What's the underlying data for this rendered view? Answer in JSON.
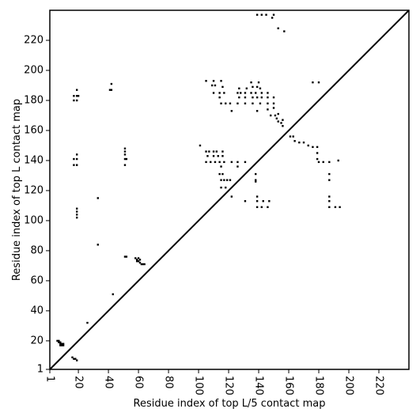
{
  "chart_data": {
    "type": "scatter",
    "xlabel": "Residue index of top L/5 contact map",
    "ylabel": "Residue index of top L contact map",
    "xlim": [
      1,
      240
    ],
    "ylim": [
      1,
      240
    ],
    "xticks": [
      1,
      20,
      40,
      60,
      80,
      100,
      120,
      140,
      160,
      180,
      200,
      220
    ],
    "yticks": [
      1,
      20,
      40,
      60,
      80,
      100,
      120,
      140,
      160,
      180,
      200,
      220
    ],
    "color": "#000000",
    "x": [
      6,
      7,
      7,
      8,
      8,
      9,
      9,
      10,
      10,
      8,
      16,
      17,
      18,
      19,
      26,
      33,
      43,
      51,
      52,
      58,
      59,
      60,
      61,
      62,
      63,
      64,
      60,
      59,
      61,
      33,
      19,
      19,
      19,
      19,
      17,
      17,
      19,
      19,
      19,
      17,
      17,
      19,
      19,
      19,
      20,
      41,
      42,
      42,
      51,
      51,
      51,
      51,
      51,
      52,
      101,
      105,
      107,
      110,
      112,
      116,
      106,
      110,
      113,
      116,
      105,
      108,
      111,
      114,
      117,
      122,
      126,
      131,
      115,
      126,
      114,
      116,
      115,
      117,
      119,
      121,
      115,
      118,
      122,
      131,
      139,
      139,
      142,
      146,
      139,
      143,
      147,
      138,
      138,
      138,
      105,
      110,
      115,
      109,
      111,
      116,
      110,
      114,
      117,
      126,
      128,
      131,
      135,
      138,
      142,
      146,
      127,
      132,
      136,
      139,
      141,
      135,
      140,
      114,
      127,
      131,
      136,
      139,
      142,
      146,
      150,
      115,
      118,
      121,
      126,
      131,
      136,
      141,
      146,
      150,
      122,
      139,
      146,
      150,
      148,
      151,
      152,
      153,
      155,
      156,
      156,
      153,
      161,
      163,
      164,
      167,
      170,
      173,
      176,
      179,
      179,
      179,
      180,
      183,
      187,
      193,
      187,
      187,
      187,
      187,
      187,
      191,
      194,
      176,
      180,
      139,
      142,
      145,
      150,
      149,
      153,
      157
    ],
    "values": [
      20,
      20,
      19,
      19,
      18,
      18,
      17,
      17,
      18,
      17,
      9,
      8,
      8,
      7,
      32,
      84,
      51,
      76,
      76,
      75,
      74,
      73,
      72,
      71,
      71,
      71,
      75,
      73,
      74,
      115,
      102,
      104,
      106,
      108,
      137,
      141,
      141,
      137,
      144,
      180,
      183,
      183,
      180,
      187,
      183,
      187,
      187,
      191,
      137,
      141,
      144,
      146,
      148,
      141,
      150,
      146,
      146,
      146,
      146,
      146,
      143,
      143,
      143,
      143,
      139,
      139,
      139,
      139,
      139,
      139,
      139,
      139,
      136,
      136,
      131,
      131,
      127,
      127,
      127,
      127,
      122,
      122,
      116,
      113,
      116,
      109,
      109,
      109,
      113,
      113,
      113,
      126,
      127,
      131,
      193,
      193,
      193,
      190,
      190,
      189,
      185,
      185,
      185,
      185,
      185,
      185,
      185,
      185,
      185,
      185,
      188,
      188,
      189,
      189,
      188,
      192,
      192,
      182,
      182,
      182,
      182,
      182,
      182,
      182,
      182,
      178,
      178,
      178,
      178,
      178,
      178,
      178,
      178,
      178,
      173,
      173,
      174,
      175,
      170,
      170,
      168,
      166,
      165,
      163,
      167,
      171,
      156,
      156,
      153,
      152,
      152,
      150,
      149,
      149,
      145,
      141,
      139,
      139,
      139,
      140,
      131,
      127,
      116,
      113,
      109,
      109,
      109,
      192,
      192,
      237,
      237,
      237,
      237,
      235,
      228,
      226
    ]
  }
}
